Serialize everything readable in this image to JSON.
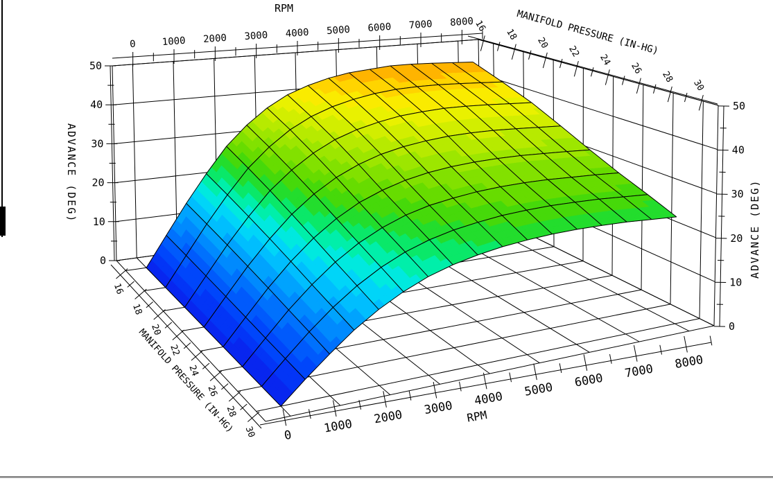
{
  "page": {
    "background": "#ffffff",
    "line_color": "#000000",
    "left_border_color": "#000000",
    "bottom_border_color": "#808080"
  },
  "titles": {
    "top_rpm": "RPM",
    "top_mp": "MANIFOLD PRESSURE (IN-HG)",
    "left_adv": "ADVANCE (DEG)",
    "right_adv": "ADVANCE (DEG)",
    "bottom_rpm": "RPM",
    "bottom_mp": "MANIFOLD PRESSURE (IN-HG)"
  },
  "chart_data": {
    "type": "surface",
    "title": "",
    "xlabel": "RPM",
    "ylabel": "MANIFOLD PRESSURE (IN-HG)",
    "zlabel": "ADVANCE (DEG)",
    "x_range": [
      -500,
      8500
    ],
    "y_range": [
      15,
      31
    ],
    "z_range": [
      0,
      50
    ],
    "x_ticks": [
      0,
      1000,
      2000,
      3000,
      4000,
      5000,
      6000,
      7000,
      8000
    ],
    "y_ticks": [
      16,
      18,
      20,
      22,
      24,
      26,
      28,
      30
    ],
    "z_ticks": [
      0,
      10,
      20,
      30,
      40,
      50
    ],
    "x_minor_step": 500,
    "y_minor_step": 1,
    "z_minor_step": 5,
    "x": [
      0,
      500,
      1000,
      1500,
      2000,
      2500,
      3000,
      3500,
      4000,
      4500,
      5000,
      5500,
      6000,
      6500,
      7000,
      7500,
      8000
    ],
    "y": [
      16,
      18,
      20,
      22,
      24,
      26,
      28,
      30
    ],
    "z": [
      [
        0,
        7.5,
        15,
        22,
        28.5,
        33.5,
        37.5,
        40.5,
        42.5,
        44,
        45,
        45.5,
        46,
        46,
        45.8,
        45.5,
        45.2
      ],
      [
        0,
        7,
        14,
        20.5,
        26.5,
        31.2,
        35,
        37.8,
        39.8,
        41.2,
        42.2,
        42.8,
        43,
        43,
        42.8,
        42.5,
        42.2
      ],
      [
        0,
        6.5,
        13,
        19,
        24.5,
        28.8,
        32.3,
        35,
        36.9,
        38.2,
        39.2,
        39.7,
        40,
        40,
        39.8,
        39.5,
        39.2
      ],
      [
        0,
        6,
        12,
        17.5,
        22.4,
        26.4,
        29.6,
        32,
        33.8,
        35,
        35.8,
        36.3,
        36.5,
        36.5,
        36.3,
        36,
        35.7
      ],
      [
        0,
        5.5,
        11,
        16,
        20.4,
        24,
        26.9,
        29,
        30.6,
        31.7,
        32.4,
        32.8,
        33,
        33,
        32.8,
        32.6,
        32.3
      ],
      [
        0,
        5,
        10,
        14.5,
        18.5,
        21.8,
        24.4,
        26.4,
        27.8,
        28.7,
        29.4,
        29.8,
        30,
        30,
        29.8,
        29.6,
        29.3
      ],
      [
        0,
        4.6,
        9.1,
        13.2,
        16.8,
        19.8,
        22.2,
        24,
        25.3,
        26.2,
        26.9,
        27.3,
        27.5,
        27.5,
        27.4,
        27.1,
        26.8
      ],
      [
        0,
        4.2,
        8.2,
        12,
        15.2,
        17.9,
        20.1,
        21.7,
        22.9,
        23.8,
        24.4,
        24.8,
        25,
        25,
        24.9,
        24.6,
        24.3
      ]
    ],
    "colormap": [
      [
        0,
        "#0a1eeb"
      ],
      [
        4,
        "#003cfa"
      ],
      [
        8,
        "#0064fc"
      ],
      [
        12,
        "#0096fe"
      ],
      [
        15,
        "#00befe"
      ],
      [
        18,
        "#00e1f5"
      ],
      [
        20,
        "#00f0c8"
      ],
      [
        22,
        "#00ee8c"
      ],
      [
        24,
        "#14e146"
      ],
      [
        26,
        "#32d814"
      ],
      [
        28,
        "#5ada00"
      ],
      [
        31,
        "#82e100"
      ],
      [
        34,
        "#aae800"
      ],
      [
        37,
        "#d2ee00"
      ],
      [
        40,
        "#f5f200"
      ],
      [
        42,
        "#ffe400"
      ],
      [
        44,
        "#ffc300"
      ],
      [
        46,
        "#ffa500"
      ],
      [
        50,
        "#ff7800"
      ]
    ],
    "color_band_width": 2,
    "grid": true,
    "legend": "none"
  }
}
